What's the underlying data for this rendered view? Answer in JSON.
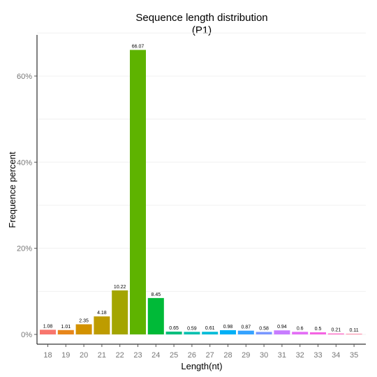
{
  "chart_data": {
    "type": "bar",
    "title": "Sequence length distribution",
    "subtitle": "(P1)",
    "xlabel": "Length(nt)",
    "ylabel": "Frequence percent",
    "categories": [
      "18",
      "19",
      "20",
      "21",
      "22",
      "23",
      "24",
      "25",
      "26",
      "27",
      "28",
      "29",
      "30",
      "31",
      "32",
      "33",
      "34",
      "35"
    ],
    "values": [
      1.08,
      1.01,
      2.35,
      4.18,
      10.22,
      66.07,
      8.45,
      0.65,
      0.59,
      0.61,
      0.98,
      0.87,
      0.58,
      0.94,
      0.6,
      0.5,
      0.21,
      0.11
    ],
    "data_labels": [
      "1.08",
      "1.01",
      "2.35",
      "4.18",
      "10.22",
      "66.07",
      "8.45",
      "0.65",
      "0.59",
      "0.61",
      "0.98",
      "0.87",
      "0.58",
      "0.94",
      "0.6",
      "0.5",
      "0.21",
      "0.11"
    ],
    "colors": [
      "#F8766D",
      "#E7861B",
      "#D39200",
      "#BE9C00",
      "#A3A500",
      "#5EB300",
      "#00BA38",
      "#00BF7D",
      "#00C0AF",
      "#00BCD8",
      "#00B0F6",
      "#35A2FF",
      "#7997FF",
      "#C77CFF",
      "#E36EF6",
      "#F564E3",
      "#FF61C3",
      "#FF6C91"
    ],
    "ylim": [
      0,
      70
    ],
    "y_ticks": [
      0,
      20,
      40,
      60
    ],
    "y_tick_labels": [
      "0%",
      "20%",
      "40%",
      "60%"
    ],
    "grid": true,
    "legend": "none"
  }
}
